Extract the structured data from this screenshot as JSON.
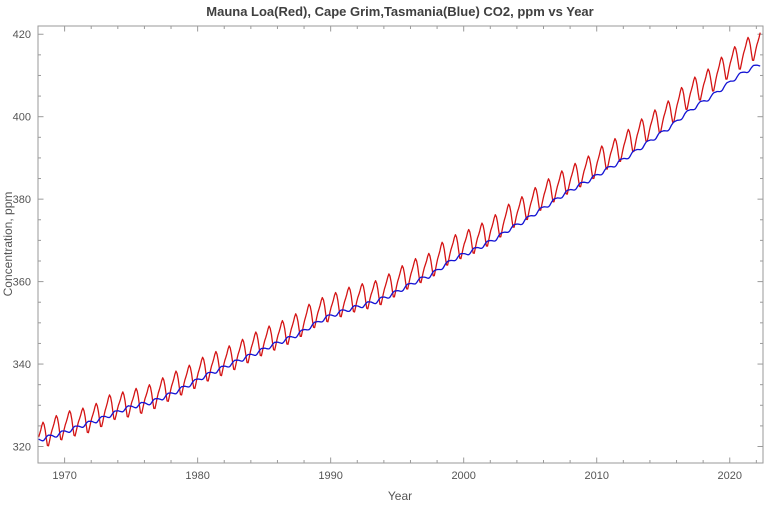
{
  "chart_data": {
    "type": "line",
    "title": "Mauna Loa(Red), Cape Grim,Tasmania(Blue) CO2, ppm vs Year",
    "xlabel": "Year",
    "ylabel": "Concentration, ppm",
    "xlim": [
      1968,
      2022.5
    ],
    "ylim": [
      316,
      422
    ],
    "xticks": [
      1970,
      1980,
      1990,
      2000,
      2010,
      2020
    ],
    "xminor_step": 2,
    "yticks": [
      320,
      340,
      360,
      380,
      400,
      420
    ],
    "yminor_step": 5,
    "x_end_data": 2022.3,
    "frame_color": "#9a9a9a",
    "title_color": "#3f3f3f",
    "label_color": "#555555",
    "grid": false,
    "legend": "colors named in title",
    "series": [
      {
        "name": "Mauna Loa (Red)",
        "color": "#d41414",
        "years": [
          1968,
          1969,
          1970,
          1971,
          1972,
          1973,
          1974,
          1975,
          1976,
          1977,
          1978,
          1979,
          1980,
          1981,
          1982,
          1983,
          1984,
          1985,
          1986,
          1987,
          1988,
          1989,
          1990,
          1991,
          1992,
          1993,
          1994,
          1995,
          1996,
          1997,
          1998,
          1999,
          2000,
          2001,
          2002,
          2003,
          2004,
          2005,
          2006,
          2007,
          2008,
          2009,
          2010,
          2011,
          2012,
          2013,
          2014,
          2015,
          2016,
          2017,
          2018,
          2019,
          2020,
          2021,
          2022
        ],
        "values": [
          323.0,
          324.6,
          325.7,
          326.3,
          327.5,
          329.7,
          330.2,
          331.1,
          332.0,
          333.8,
          335.4,
          336.8,
          338.8,
          340.1,
          341.5,
          343.1,
          344.9,
          346.3,
          347.6,
          349.3,
          351.7,
          353.2,
          354.4,
          355.7,
          356.5,
          357.2,
          359.0,
          361.0,
          362.7,
          363.9,
          366.8,
          368.5,
          369.7,
          371.3,
          373.4,
          376.0,
          377.7,
          380.0,
          382.1,
          384.0,
          385.8,
          387.6,
          390.1,
          391.8,
          394.1,
          396.7,
          398.8,
          401.0,
          404.4,
          406.8,
          408.7,
          411.7,
          414.2,
          416.4,
          418.3
        ],
        "seasonal_monthly": [
          0.0,
          0.7,
          1.5,
          2.5,
          3.1,
          2.4,
          0.9,
          -1.2,
          -3.1,
          -3.3,
          -2.2,
          -1.0
        ]
      },
      {
        "name": "Cape Grim, Tasmania (Blue)",
        "color": "#1414d4",
        "years": [
          1968,
          1969,
          1970,
          1971,
          1972,
          1973,
          1974,
          1975,
          1976,
          1977,
          1978,
          1979,
          1980,
          1981,
          1982,
          1983,
          1984,
          1985,
          1986,
          1987,
          1988,
          1989,
          1990,
          1991,
          1992,
          1993,
          1994,
          1995,
          1996,
          1997,
          1998,
          1999,
          2000,
          2001,
          2002,
          2003,
          2004,
          2005,
          2006,
          2007,
          2008,
          2009,
          2010,
          2011,
          2012,
          2013,
          2014,
          2015,
          2016,
          2017,
          2018,
          2019,
          2020,
          2021,
          2022
        ],
        "values": [
          322.0,
          322.9,
          324.1,
          325.3,
          326.4,
          327.7,
          329.1,
          330.0,
          330.7,
          332.0,
          333.5,
          335.2,
          337.0,
          338.5,
          340.0,
          341.4,
          342.8,
          344.4,
          345.7,
          347.1,
          349.1,
          351.0,
          352.3,
          353.4,
          354.3,
          355.3,
          356.7,
          358.4,
          360.2,
          361.5,
          363.8,
          365.9,
          367.2,
          368.8,
          370.6,
          372.8,
          374.6,
          376.8,
          378.9,
          381.1,
          383.0,
          384.7,
          386.7,
          388.6,
          390.6,
          392.9,
          395.2,
          397.4,
          400.2,
          402.6,
          404.6,
          407.0,
          409.6,
          411.5,
          413.0
        ],
        "seasonal_monthly": [
          0.2,
          0.0,
          -0.2,
          -0.4,
          -0.5,
          -0.4,
          -0.1,
          0.2,
          0.4,
          0.5,
          0.4,
          0.3
        ]
      }
    ]
  }
}
